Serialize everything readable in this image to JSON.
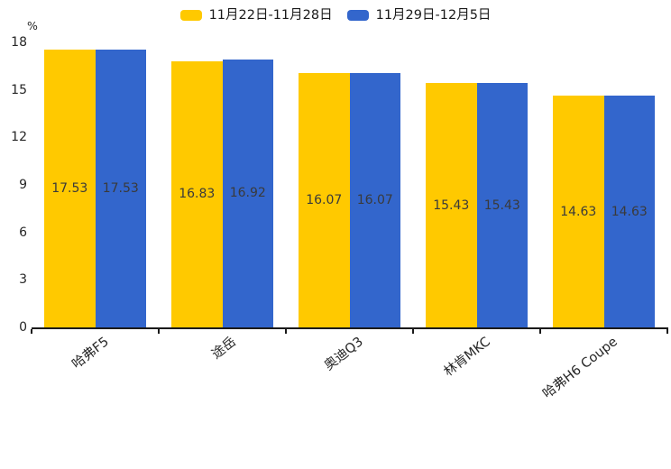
{
  "chart_data": {
    "type": "bar",
    "title": "",
    "categories": [
      "哈弗F5",
      "途岳",
      "奥迪Q3",
      "林肯MKC",
      "哈弗H6 Coupe"
    ],
    "series": [
      {
        "name": "11月22日-11月28日",
        "color": "#FFC900",
        "values": [
          17.53,
          16.83,
          16.07,
          15.43,
          14.63
        ]
      },
      {
        "name": "11月29日-12月5日",
        "color": "#3366CC",
        "values": [
          17.53,
          16.92,
          16.07,
          15.43,
          14.63
        ]
      }
    ],
    "ylabel": "%",
    "yticks": [
      0,
      3,
      6,
      9,
      12,
      15,
      18
    ],
    "ylim": [
      0,
      18
    ],
    "value_label_decimals": 2,
    "legend_position": "top-center",
    "grid": false,
    "bar_value_labels_inside": true,
    "category_label_rotation_deg": -38,
    "colors": {
      "axis": "#1a1a1a",
      "tick_text": "#262626",
      "value_label_text": "#3a3a3a",
      "background": "#ffffff"
    }
  }
}
